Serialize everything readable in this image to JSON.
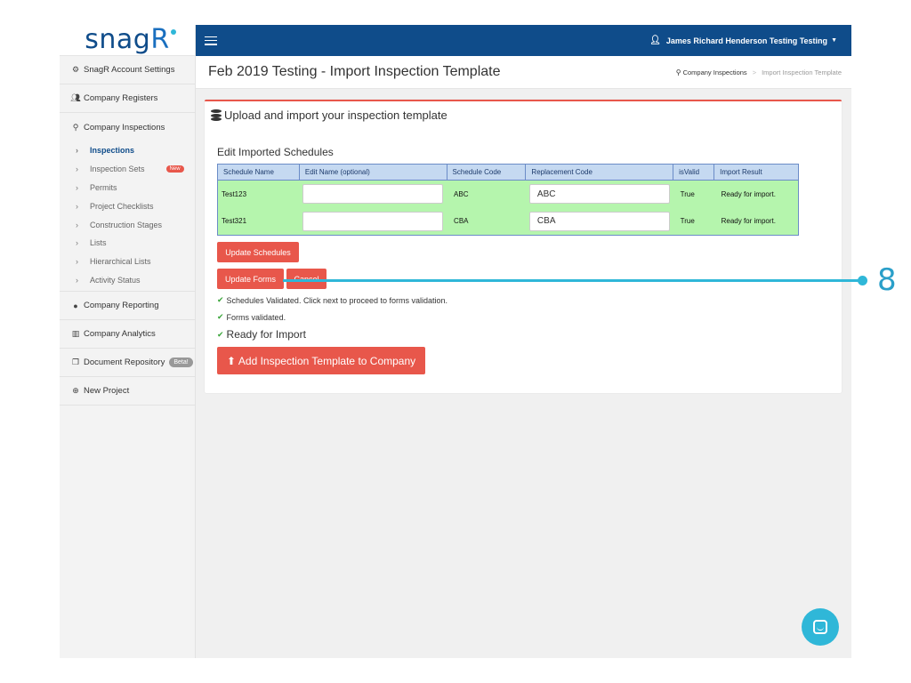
{
  "app": {
    "logo_text": "snag",
    "logo_accent": "R"
  },
  "sidebar": {
    "items_top": [
      {
        "label": "SnagR Account Settings",
        "icon": "gears-icon"
      },
      {
        "label": "Company Registers",
        "icon": "users-icon"
      },
      {
        "label": "Company Inspections",
        "icon": "search-icon"
      }
    ],
    "sub_items": [
      {
        "label": "Inspections",
        "active": true
      },
      {
        "label": "Inspection Sets",
        "badge": "New"
      },
      {
        "label": "Permits"
      },
      {
        "label": "Project Checklists"
      },
      {
        "label": "Construction Stages"
      },
      {
        "label": "Lists"
      },
      {
        "label": "Hierarchical Lists"
      },
      {
        "label": "Activity Status"
      }
    ],
    "items_bottom": [
      {
        "label": "Company Reporting",
        "icon": "globe-icon"
      },
      {
        "label": "Company Analytics",
        "icon": "bar-chart-icon"
      },
      {
        "label": "Document Repository",
        "icon": "copy-icon",
        "badge": "Beta!"
      },
      {
        "label": "New Project",
        "icon": "plus-circle-icon"
      }
    ]
  },
  "topbar": {
    "user_name": "James Richard Henderson Testing Testing"
  },
  "header": {
    "title": "Feb 2019 Testing - Import Inspection Template",
    "breadcrumb": {
      "link": "Company Inspections",
      "current": "Import Inspection Template"
    }
  },
  "panel": {
    "heading": "Upload and import your inspection template",
    "section_title": "Edit Imported Schedules",
    "table": {
      "headers": [
        "Schedule Name",
        "Edit Name (optional)",
        "Schedule Code",
        "Replacement Code",
        "isValid",
        "Import Result"
      ],
      "rows": [
        {
          "name": "Test123",
          "edit_name": "",
          "code": "ABC",
          "replacement": "ABC",
          "valid": "True",
          "result": "Ready for import."
        },
        {
          "name": "Test321",
          "edit_name": "",
          "code": "CBA",
          "replacement": "CBA",
          "valid": "True",
          "result": "Ready for import."
        }
      ]
    },
    "buttons": {
      "update_schedules": "Update Schedules",
      "update_forms": "Update Forms",
      "cancel": "Cancel",
      "add_template": "Add Inspection Template to Company"
    },
    "status": {
      "schedules_validated": "Schedules Validated. Click next to proceed to forms validation.",
      "forms_validated": "Forms validated.",
      "ready": "Ready for Import"
    }
  },
  "callout": {
    "number": "8"
  },
  "colors": {
    "primary": "#0f4c8a",
    "accent": "#e8574b",
    "success_row": "#b5f5ad",
    "callout": "#2fb7d8"
  }
}
